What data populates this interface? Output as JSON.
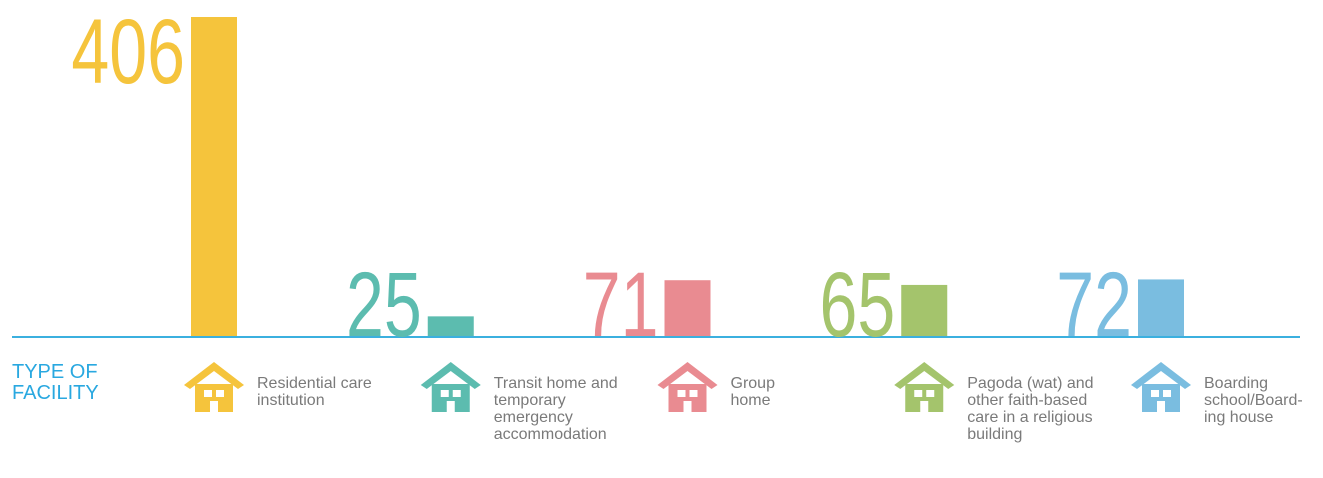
{
  "chart_data": {
    "type": "bar",
    "xlabel": "TYPE OF FACILITY",
    "categories": [
      "Residential care institution",
      "Transit home and temporary emergency accommodation",
      "Group home",
      "Pagoda (wat) and other faith-based care in a religious building",
      "Boarding school/Board-ing house"
    ],
    "values": [
      406,
      25,
      71,
      65,
      72
    ],
    "colors": [
      "#f5c43c",
      "#5cbcaf",
      "#e98b91",
      "#a4c46c",
      "#7abde0"
    ],
    "ylim": [
      0,
      406
    ]
  }
}
